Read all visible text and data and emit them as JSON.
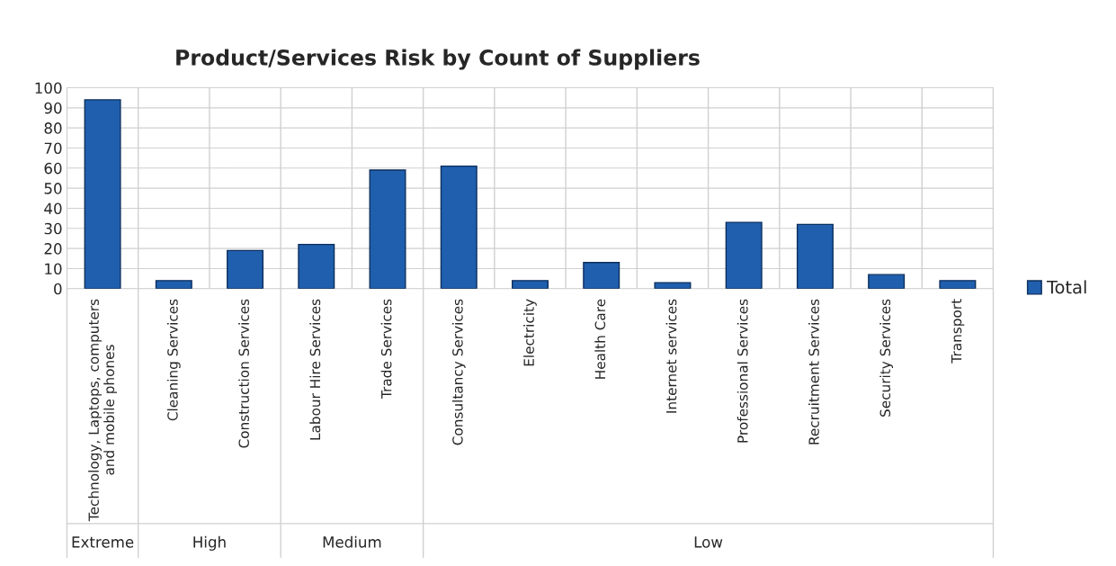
{
  "chart_data": {
    "type": "bar",
    "title": "Product/Services Risk by Count of Suppliers",
    "categories": [
      "Technology, Laptops, computers and mobile phones",
      "Cleaning Services",
      "Construction Services",
      "Labour Hire Services",
      "Trade Services",
      "Consultancy Services",
      "Electricity",
      "Health Care",
      "Internet services",
      "Professional Services",
      "Recruitment Services",
      "Security Services",
      "Transport"
    ],
    "series": [
      {
        "name": "Total",
        "color": "#1f5fae",
        "values": [
          94,
          4,
          19,
          22,
          59,
          61,
          4,
          13,
          3,
          33,
          32,
          7,
          4
        ]
      }
    ],
    "ylim": [
      0,
      100
    ],
    "yticks": [
      0,
      10,
      20,
      30,
      40,
      50,
      60,
      70,
      80,
      90,
      100
    ],
    "grid": true,
    "legend": "right",
    "annotations": [
      "Extreme",
      "High",
      "Medium",
      "Low"
    ]
  }
}
